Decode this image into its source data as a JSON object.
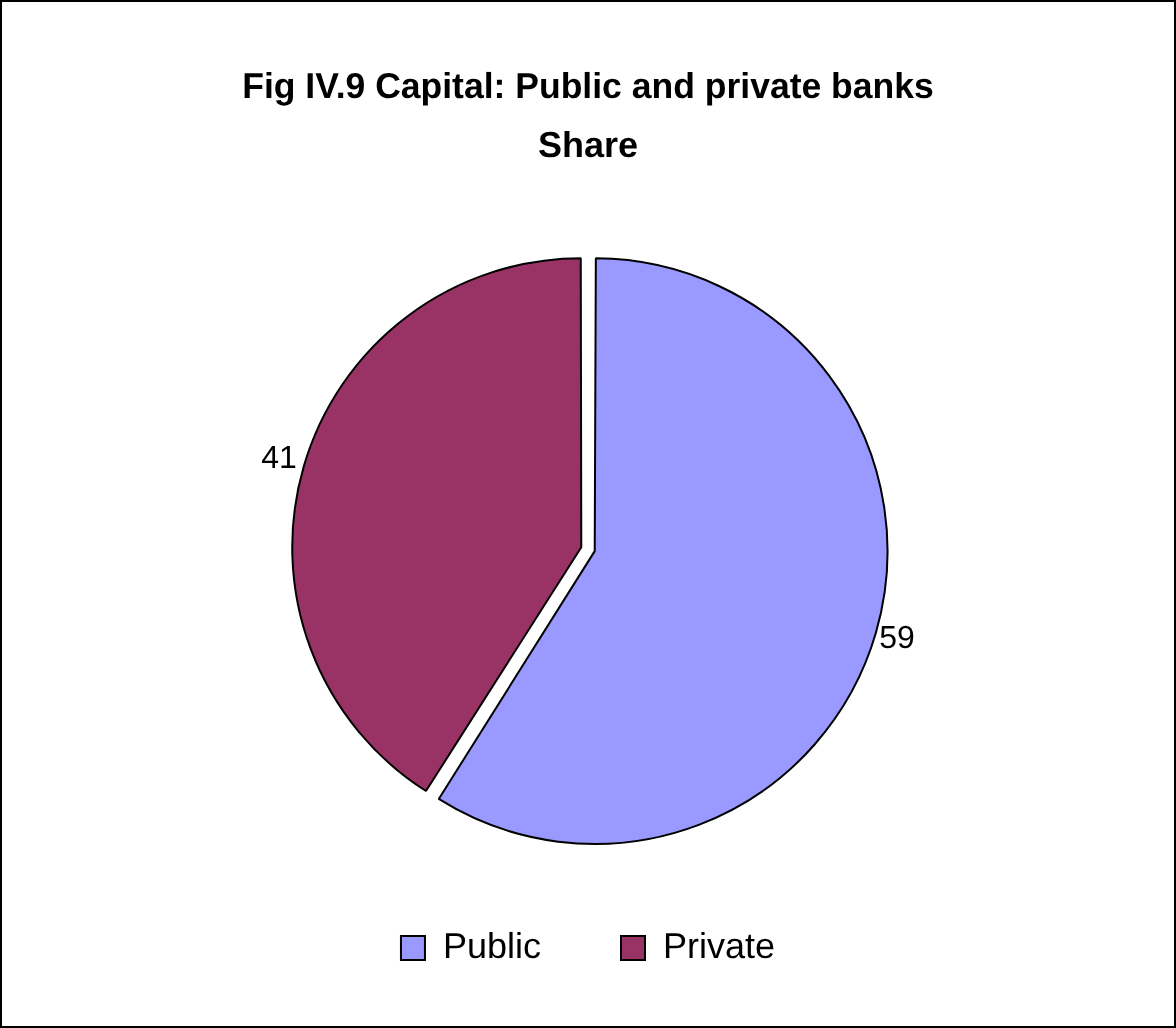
{
  "chart_data": {
    "type": "pie",
    "title": "Fig IV.9 Capital: Public and private banks",
    "subtitle": "Share",
    "categories": [
      "Public",
      "Private"
    ],
    "values": [
      59,
      41
    ],
    "colors": [
      "#9999ff",
      "#993366"
    ],
    "data_labels": true,
    "legend": "bottom"
  }
}
